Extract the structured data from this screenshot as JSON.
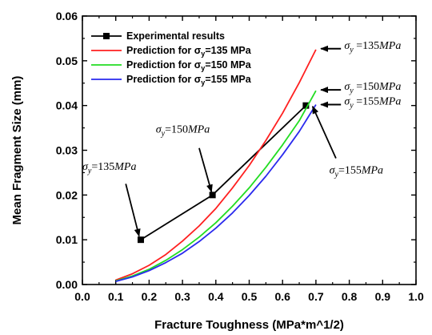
{
  "chart_data": {
    "type": "line",
    "title": "",
    "xlabel": "Fracture Toughness (MPa*m^1/2)",
    "ylabel": "Mean Fragment Size (mm)",
    "xlim": [
      0.0,
      1.0
    ],
    "ylim": [
      0.0,
      0.06
    ],
    "x_ticks": [
      "0.0",
      "0.1",
      "0.2",
      "0.3",
      "0.4",
      "0.5",
      "0.6",
      "0.7",
      "0.8",
      "0.9",
      "1.0"
    ],
    "y_ticks": [
      "0.00",
      "0.01",
      "0.02",
      "0.03",
      "0.04",
      "0.05",
      "0.06"
    ],
    "grid": false,
    "legend_position": "top-left",
    "series": [
      {
        "name": "Experimental results",
        "color": "#000000",
        "marker": "square",
        "x": [
          0.175,
          0.39,
          0.67
        ],
        "y": [
          0.01,
          0.02,
          0.04
        ]
      },
      {
        "name_prefix": "Prediction for ",
        "name_var": "σ",
        "name_sub": "y",
        "name_suffix": "=135 MPa",
        "color": "#ff2020",
        "x": [
          0.1,
          0.15,
          0.2,
          0.25,
          0.3,
          0.35,
          0.4,
          0.45,
          0.5,
          0.55,
          0.6,
          0.65,
          0.7
        ],
        "y": [
          0.001,
          0.0024,
          0.0043,
          0.0067,
          0.0097,
          0.0131,
          0.017,
          0.0216,
          0.0266,
          0.0322,
          0.0383,
          0.0451,
          0.0525
        ]
      },
      {
        "name_prefix": "Prediction for ",
        "name_var": "σ",
        "name_sub": "y",
        "name_suffix": "=150 MPa",
        "color": "#22dd22",
        "x": [
          0.1,
          0.15,
          0.2,
          0.25,
          0.3,
          0.35,
          0.4,
          0.45,
          0.5,
          0.55,
          0.6,
          0.65,
          0.7
        ],
        "y": [
          0.0008,
          0.0019,
          0.0034,
          0.0054,
          0.0078,
          0.0106,
          0.0138,
          0.0175,
          0.0216,
          0.0262,
          0.0312,
          0.0366,
          0.0433
        ]
      },
      {
        "name_prefix": "Prediction for ",
        "name_var": "σ",
        "name_sub": "y",
        "name_suffix": "=155 MPa",
        "color": "#2a2aee",
        "x": [
          0.1,
          0.15,
          0.2,
          0.25,
          0.3,
          0.35,
          0.4,
          0.45,
          0.5,
          0.55,
          0.6,
          0.65,
          0.7
        ],
        "y": [
          0.0007,
          0.0017,
          0.0031,
          0.0049,
          0.007,
          0.0096,
          0.0126,
          0.016,
          0.0199,
          0.0242,
          0.029,
          0.0342,
          0.0402
        ]
      }
    ],
    "annotations": [
      {
        "var": "σ",
        "sub": "y",
        "rest": "=135",
        "unit": "MPa",
        "text_x": 0.0,
        "text_y": 0.0256,
        "arrow_from": [
          0.13,
          0.0225
        ],
        "arrow_to": [
          0.17,
          0.0108
        ],
        "arrow": true
      },
      {
        "var": "σ",
        "sub": "y",
        "rest": "=150",
        "unit": "MPa",
        "text_x": 0.22,
        "text_y": 0.0339,
        "arrow_from": [
          0.35,
          0.0305
        ],
        "arrow_to": [
          0.387,
          0.0207
        ],
        "arrow": true
      },
      {
        "var": "σ",
        "sub": "y",
        "rest": "=155",
        "unit": "MPa",
        "text_x": 0.74,
        "text_y": 0.0248,
        "arrow_from": [
          0.76,
          0.0282
        ],
        "arrow_to": [
          0.69,
          0.0398
        ],
        "arrow": true
      },
      {
        "var": "σ",
        "sub": "y",
        "rest": " =135",
        "unit": "MPa",
        "text_x": 0.785,
        "text_y": 0.0527,
        "arrow_from": [
          0.775,
          0.0527
        ],
        "arrow_to": [
          0.715,
          0.0527
        ],
        "arrow": true,
        "head_only": true
      },
      {
        "var": "σ",
        "sub": "y",
        "rest": " =150",
        "unit": "MPa",
        "text_x": 0.785,
        "text_y": 0.0435,
        "arrow_from": [
          0.775,
          0.0435
        ],
        "arrow_to": [
          0.715,
          0.0435
        ],
        "arrow": true,
        "head_only": true
      },
      {
        "var": "σ",
        "sub": "y",
        "rest": " =155",
        "unit": "MPa",
        "text_x": 0.785,
        "text_y": 0.0402,
        "arrow_from": [
          0.775,
          0.0402
        ],
        "arrow_to": [
          0.715,
          0.0402
        ],
        "arrow": true,
        "head_only": true
      }
    ]
  }
}
